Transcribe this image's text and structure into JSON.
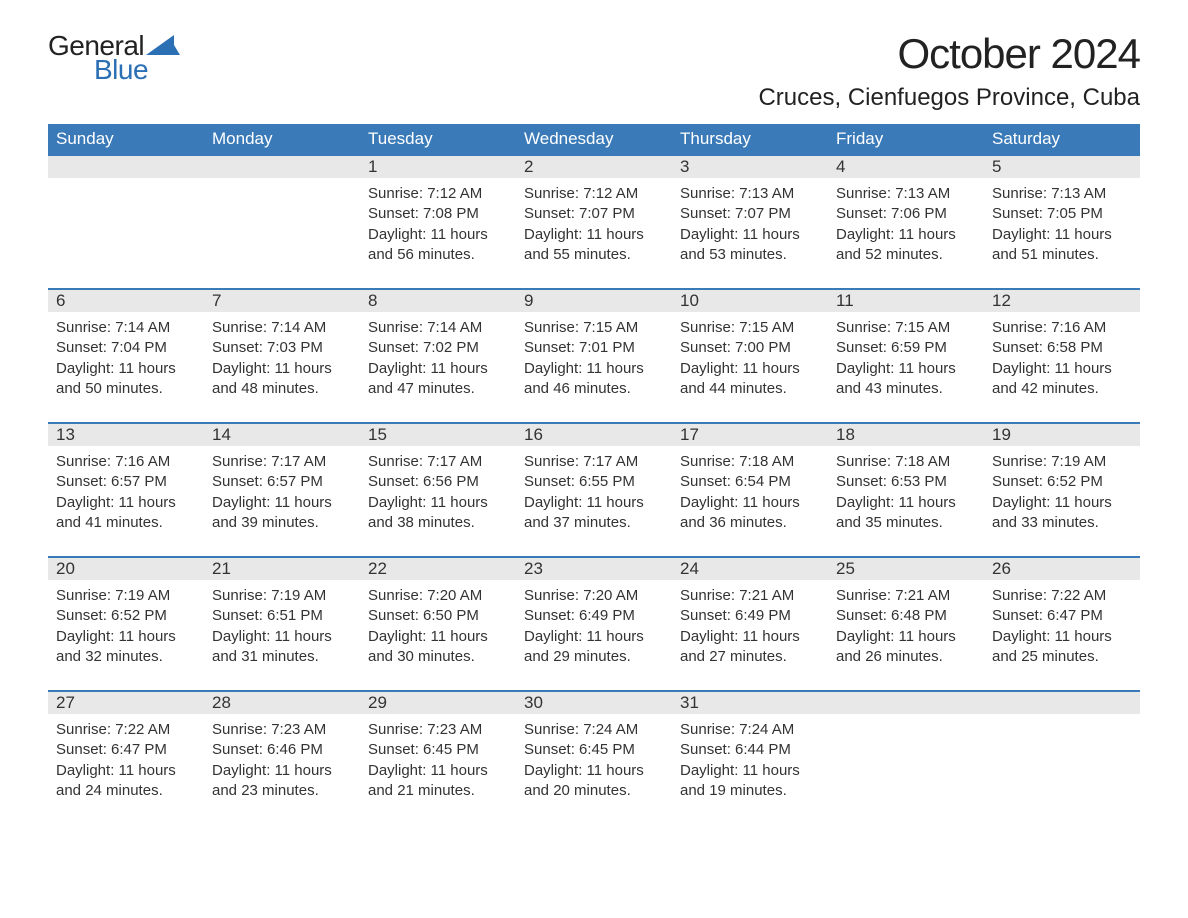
{
  "brand": {
    "word1": "General",
    "word2": "Blue",
    "sail_color": "#2b6fb5"
  },
  "title": "October 2024",
  "location": "Cruces, Cienfuegos Province, Cuba",
  "colors": {
    "header_bg": "#3a7ab8",
    "header_text": "#ffffff",
    "daynum_bg": "#e8e8e8",
    "text": "#333333",
    "accent_border": "#3a7ab8",
    "page_bg": "#ffffff"
  },
  "typography": {
    "title_fontsize": 42,
    "location_fontsize": 24,
    "dayheader_fontsize": 17,
    "daynum_fontsize": 17,
    "body_fontsize": 15
  },
  "day_headers": [
    "Sunday",
    "Monday",
    "Tuesday",
    "Wednesday",
    "Thursday",
    "Friday",
    "Saturday"
  ],
  "weeks": [
    [
      {
        "day": null
      },
      {
        "day": null
      },
      {
        "day": "1",
        "sunrise": "Sunrise: 7:12 AM",
        "sunset": "Sunset: 7:08 PM",
        "dl1": "Daylight: 11 hours",
        "dl2": "and 56 minutes."
      },
      {
        "day": "2",
        "sunrise": "Sunrise: 7:12 AM",
        "sunset": "Sunset: 7:07 PM",
        "dl1": "Daylight: 11 hours",
        "dl2": "and 55 minutes."
      },
      {
        "day": "3",
        "sunrise": "Sunrise: 7:13 AM",
        "sunset": "Sunset: 7:07 PM",
        "dl1": "Daylight: 11 hours",
        "dl2": "and 53 minutes."
      },
      {
        "day": "4",
        "sunrise": "Sunrise: 7:13 AM",
        "sunset": "Sunset: 7:06 PM",
        "dl1": "Daylight: 11 hours",
        "dl2": "and 52 minutes."
      },
      {
        "day": "5",
        "sunrise": "Sunrise: 7:13 AM",
        "sunset": "Sunset: 7:05 PM",
        "dl1": "Daylight: 11 hours",
        "dl2": "and 51 minutes."
      }
    ],
    [
      {
        "day": "6",
        "sunrise": "Sunrise: 7:14 AM",
        "sunset": "Sunset: 7:04 PM",
        "dl1": "Daylight: 11 hours",
        "dl2": "and 50 minutes."
      },
      {
        "day": "7",
        "sunrise": "Sunrise: 7:14 AM",
        "sunset": "Sunset: 7:03 PM",
        "dl1": "Daylight: 11 hours",
        "dl2": "and 48 minutes."
      },
      {
        "day": "8",
        "sunrise": "Sunrise: 7:14 AM",
        "sunset": "Sunset: 7:02 PM",
        "dl1": "Daylight: 11 hours",
        "dl2": "and 47 minutes."
      },
      {
        "day": "9",
        "sunrise": "Sunrise: 7:15 AM",
        "sunset": "Sunset: 7:01 PM",
        "dl1": "Daylight: 11 hours",
        "dl2": "and 46 minutes."
      },
      {
        "day": "10",
        "sunrise": "Sunrise: 7:15 AM",
        "sunset": "Sunset: 7:00 PM",
        "dl1": "Daylight: 11 hours",
        "dl2": "and 44 minutes."
      },
      {
        "day": "11",
        "sunrise": "Sunrise: 7:15 AM",
        "sunset": "Sunset: 6:59 PM",
        "dl1": "Daylight: 11 hours",
        "dl2": "and 43 minutes."
      },
      {
        "day": "12",
        "sunrise": "Sunrise: 7:16 AM",
        "sunset": "Sunset: 6:58 PM",
        "dl1": "Daylight: 11 hours",
        "dl2": "and 42 minutes."
      }
    ],
    [
      {
        "day": "13",
        "sunrise": "Sunrise: 7:16 AM",
        "sunset": "Sunset: 6:57 PM",
        "dl1": "Daylight: 11 hours",
        "dl2": "and 41 minutes."
      },
      {
        "day": "14",
        "sunrise": "Sunrise: 7:17 AM",
        "sunset": "Sunset: 6:57 PM",
        "dl1": "Daylight: 11 hours",
        "dl2": "and 39 minutes."
      },
      {
        "day": "15",
        "sunrise": "Sunrise: 7:17 AM",
        "sunset": "Sunset: 6:56 PM",
        "dl1": "Daylight: 11 hours",
        "dl2": "and 38 minutes."
      },
      {
        "day": "16",
        "sunrise": "Sunrise: 7:17 AM",
        "sunset": "Sunset: 6:55 PM",
        "dl1": "Daylight: 11 hours",
        "dl2": "and 37 minutes."
      },
      {
        "day": "17",
        "sunrise": "Sunrise: 7:18 AM",
        "sunset": "Sunset: 6:54 PM",
        "dl1": "Daylight: 11 hours",
        "dl2": "and 36 minutes."
      },
      {
        "day": "18",
        "sunrise": "Sunrise: 7:18 AM",
        "sunset": "Sunset: 6:53 PM",
        "dl1": "Daylight: 11 hours",
        "dl2": "and 35 minutes."
      },
      {
        "day": "19",
        "sunrise": "Sunrise: 7:19 AM",
        "sunset": "Sunset: 6:52 PM",
        "dl1": "Daylight: 11 hours",
        "dl2": "and 33 minutes."
      }
    ],
    [
      {
        "day": "20",
        "sunrise": "Sunrise: 7:19 AM",
        "sunset": "Sunset: 6:52 PM",
        "dl1": "Daylight: 11 hours",
        "dl2": "and 32 minutes."
      },
      {
        "day": "21",
        "sunrise": "Sunrise: 7:19 AM",
        "sunset": "Sunset: 6:51 PM",
        "dl1": "Daylight: 11 hours",
        "dl2": "and 31 minutes."
      },
      {
        "day": "22",
        "sunrise": "Sunrise: 7:20 AM",
        "sunset": "Sunset: 6:50 PM",
        "dl1": "Daylight: 11 hours",
        "dl2": "and 30 minutes."
      },
      {
        "day": "23",
        "sunrise": "Sunrise: 7:20 AM",
        "sunset": "Sunset: 6:49 PM",
        "dl1": "Daylight: 11 hours",
        "dl2": "and 29 minutes."
      },
      {
        "day": "24",
        "sunrise": "Sunrise: 7:21 AM",
        "sunset": "Sunset: 6:49 PM",
        "dl1": "Daylight: 11 hours",
        "dl2": "and 27 minutes."
      },
      {
        "day": "25",
        "sunrise": "Sunrise: 7:21 AM",
        "sunset": "Sunset: 6:48 PM",
        "dl1": "Daylight: 11 hours",
        "dl2": "and 26 minutes."
      },
      {
        "day": "26",
        "sunrise": "Sunrise: 7:22 AM",
        "sunset": "Sunset: 6:47 PM",
        "dl1": "Daylight: 11 hours",
        "dl2": "and 25 minutes."
      }
    ],
    [
      {
        "day": "27",
        "sunrise": "Sunrise: 7:22 AM",
        "sunset": "Sunset: 6:47 PM",
        "dl1": "Daylight: 11 hours",
        "dl2": "and 24 minutes."
      },
      {
        "day": "28",
        "sunrise": "Sunrise: 7:23 AM",
        "sunset": "Sunset: 6:46 PM",
        "dl1": "Daylight: 11 hours",
        "dl2": "and 23 minutes."
      },
      {
        "day": "29",
        "sunrise": "Sunrise: 7:23 AM",
        "sunset": "Sunset: 6:45 PM",
        "dl1": "Daylight: 11 hours",
        "dl2": "and 21 minutes."
      },
      {
        "day": "30",
        "sunrise": "Sunrise: 7:24 AM",
        "sunset": "Sunset: 6:45 PM",
        "dl1": "Daylight: 11 hours",
        "dl2": "and 20 minutes."
      },
      {
        "day": "31",
        "sunrise": "Sunrise: 7:24 AM",
        "sunset": "Sunset: 6:44 PM",
        "dl1": "Daylight: 11 hours",
        "dl2": "and 19 minutes."
      },
      {
        "day": null
      },
      {
        "day": null
      }
    ]
  ]
}
